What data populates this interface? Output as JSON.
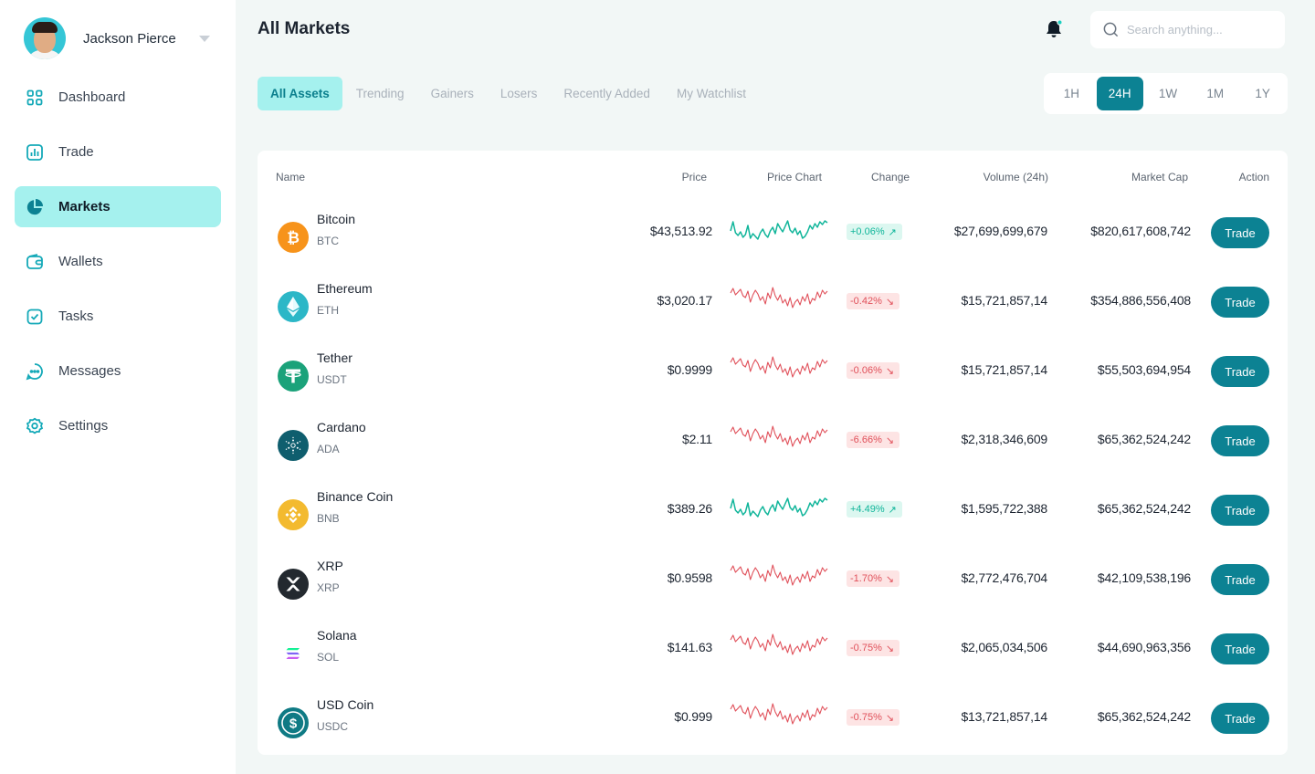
{
  "user": {
    "name": "Jackson Pierce"
  },
  "sidebar": {
    "items": [
      {
        "label": "Dashboard",
        "icon": "grid-icon",
        "active": false
      },
      {
        "label": "Trade",
        "icon": "chart-icon",
        "active": false
      },
      {
        "label": "Markets",
        "icon": "pie-chart-icon",
        "active": true
      },
      {
        "label": "Wallets",
        "icon": "wallet-icon",
        "active": false
      },
      {
        "label": "Tasks",
        "icon": "checkbox-icon",
        "active": false
      },
      {
        "label": "Messages",
        "icon": "chat-icon",
        "active": false
      },
      {
        "label": "Settings",
        "icon": "gear-icon",
        "active": false
      }
    ]
  },
  "header": {
    "title": "All Markets",
    "search_placeholder": "Search anything..."
  },
  "filters": {
    "tabs": [
      {
        "label": "All Assets",
        "active": true
      },
      {
        "label": "Trending",
        "active": false
      },
      {
        "label": "Gainers",
        "active": false
      },
      {
        "label": "Losers",
        "active": false
      },
      {
        "label": "Recently Added",
        "active": false
      },
      {
        "label": "My Watchlist",
        "active": false
      }
    ]
  },
  "timeframes": {
    "options": [
      {
        "label": "1H",
        "active": false
      },
      {
        "label": "24H",
        "active": true
      },
      {
        "label": "1W",
        "active": false
      },
      {
        "label": "1M",
        "active": false
      },
      {
        "label": "1Y",
        "active": false
      }
    ]
  },
  "table": {
    "headers": {
      "name": "Name",
      "price": "Price",
      "chart": "Price Chart",
      "change": "Change",
      "volume": "Volume (24h)",
      "market_cap": "Market Cap",
      "action": "Action"
    },
    "rows": [
      {
        "name": "Bitcoin",
        "symbol": "BTC",
        "price": "$43,513.92",
        "change": "+0.06%",
        "direction": "up",
        "volume": "$27,699,699,679",
        "market_cap": "$820,617,608,742",
        "action": "Trade",
        "icon": "bitcoin-icon",
        "icon_color": "#f7931a"
      },
      {
        "name": "Ethereum",
        "symbol": "ETH",
        "price": "$3,020.17",
        "change": "-0.42%",
        "direction": "down",
        "volume": "$15,721,857,14",
        "market_cap": "$354,886,556,408",
        "action": "Trade",
        "icon": "ethereum-icon",
        "icon_color": "#2cb7c7"
      },
      {
        "name": "Tether",
        "symbol": "USDT",
        "price": "$0.9999",
        "change": "-0.06%",
        "direction": "down",
        "volume": "$15,721,857,14",
        "market_cap": "$55,503,694,954",
        "action": "Trade",
        "icon": "tether-icon",
        "icon_color": "#1ba27a"
      },
      {
        "name": "Cardano",
        "symbol": "ADA",
        "price": "$2.11",
        "change": "-6.66%",
        "direction": "down",
        "volume": "$2,318,346,609",
        "market_cap": "$65,362,524,242",
        "action": "Trade",
        "icon": "cardano-icon",
        "icon_color": "#0f5e6e"
      },
      {
        "name": "Binance Coin",
        "symbol": "BNB",
        "price": "$389.26",
        "change": "+4.49%",
        "direction": "up",
        "volume": "$1,595,722,388",
        "market_cap": "$65,362,524,242",
        "action": "Trade",
        "icon": "binance-icon",
        "icon_color": "#f3ba2f"
      },
      {
        "name": "XRP",
        "symbol": "XRP",
        "price": "$0.9598",
        "change": "-1.70%",
        "direction": "down",
        "volume": "$2,772,476,704",
        "market_cap": "$42,109,538,196",
        "action": "Trade",
        "icon": "xrp-icon",
        "icon_color": "#23292f"
      },
      {
        "name": "Solana",
        "symbol": "SOL",
        "price": "$141.63",
        "change": "-0.75%",
        "direction": "down",
        "volume": "$2,065,034,506",
        "market_cap": "$44,690,963,356",
        "action": "Trade",
        "icon": "solana-icon",
        "icon_color": "#9945ff"
      },
      {
        "name": "USD Coin",
        "symbol": "USDC",
        "price": "$0.999",
        "change": "-0.75%",
        "direction": "down",
        "volume": "$13,721,857,14",
        "market_cap": "$65,362,524,242",
        "action": "Trade",
        "icon": "usdc-icon",
        "icon_color": "#0f7a84"
      }
    ]
  },
  "colors": {
    "accent": "#0c8293",
    "accent_light": "#a5f1ee",
    "up": "#10b59a",
    "down": "#e0505a"
  }
}
